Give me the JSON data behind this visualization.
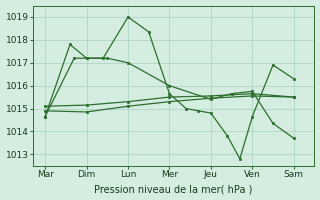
{
  "bg_color": "#d4ede0",
  "grid_color": "#a8cfc0",
  "line_color": "#2d6e2d",
  "xlabel": "Pression niveau de la mer( hPa )",
  "xtick_labels": [
    "Mar",
    "Dim",
    "Lun",
    "Mer",
    "Jeu",
    "Ven",
    "Sam"
  ],
  "ylim": [
    1012.5,
    1019.5
  ],
  "yticks": [
    1013,
    1014,
    1015,
    1016,
    1017,
    1018,
    1019
  ],
  "x_positions": [
    0,
    1,
    2,
    3,
    4,
    5,
    6
  ],
  "figsize": [
    3.2,
    2.0
  ],
  "dpi": 100,
  "lineA_x": [
    0,
    0.6,
    1.0,
    1.4,
    2.0,
    2.5,
    3.0,
    3.4,
    3.7,
    4.0,
    4.4,
    4.7,
    5.0,
    5.5,
    6.0
  ],
  "lineA_y": [
    1014.65,
    1017.8,
    1017.2,
    1017.2,
    1019.0,
    1018.35,
    1015.65,
    1015.0,
    1014.9,
    1014.8,
    1013.8,
    1012.8,
    1014.65,
    1016.9,
    1016.3
  ],
  "lineB_x": [
    0,
    0.7,
    1.0,
    1.5,
    2.0,
    3.0,
    4.0,
    4.5,
    5.0,
    5.5,
    6.0
  ],
  "lineB_y": [
    1014.65,
    1017.2,
    1017.2,
    1017.2,
    1017.0,
    1016.0,
    1015.4,
    1015.65,
    1015.75,
    1014.35,
    1013.7
  ],
  "lineC_x": [
    0,
    1,
    2,
    3,
    4,
    5,
    6
  ],
  "lineC_y": [
    1014.9,
    1014.85,
    1015.1,
    1015.3,
    1015.45,
    1015.55,
    1015.5
  ],
  "lineD_x": [
    0,
    1,
    2,
    3,
    4,
    5,
    6
  ],
  "lineD_y": [
    1015.1,
    1015.15,
    1015.3,
    1015.5,
    1015.55,
    1015.65,
    1015.5
  ]
}
